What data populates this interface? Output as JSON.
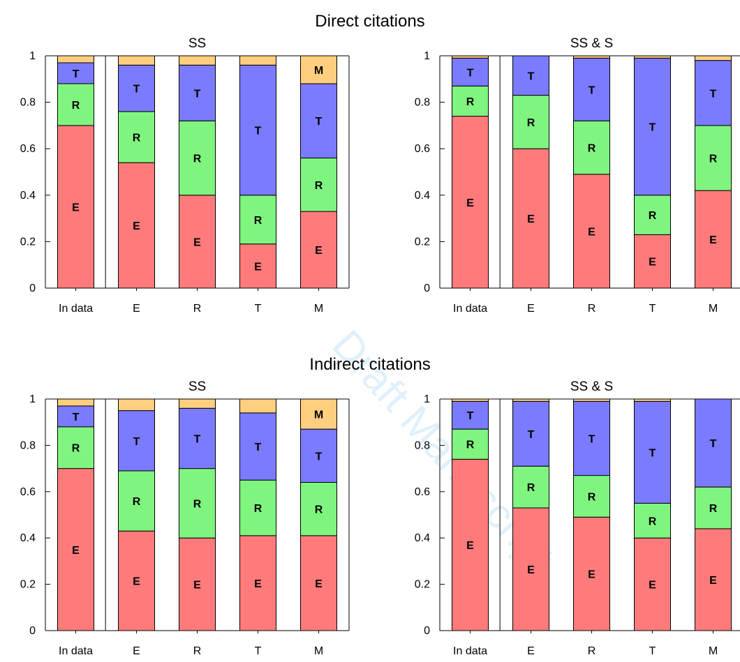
{
  "watermark": "Draft Manuscript",
  "sections": [
    {
      "title": "Direct citations"
    },
    {
      "title": "Indirect citations"
    }
  ],
  "colors": {
    "E": "#ff7b7b",
    "R": "#7ff57f",
    "T": "#7b7bff",
    "M": "#ffcf7f"
  },
  "chart_data": [
    {
      "type": "bar",
      "stacked": true,
      "section": "Direct citations",
      "title": "SS",
      "categories": [
        "In data",
        "E",
        "R",
        "T",
        "M"
      ],
      "ylim": [
        0,
        1
      ],
      "yticks": [
        "0",
        "0.2",
        "0.4",
        "0.6",
        "0.8",
        "1"
      ],
      "series": [
        {
          "name": "E",
          "values": [
            0.7,
            0.54,
            0.4,
            0.19,
            0.33
          ]
        },
        {
          "name": "R",
          "values": [
            0.18,
            0.22,
            0.32,
            0.21,
            0.23
          ]
        },
        {
          "name": "T",
          "values": [
            0.09,
            0.2,
            0.24,
            0.56,
            0.32
          ]
        },
        {
          "name": "M",
          "values": [
            0.03,
            0.04,
            0.04,
            0.04,
            0.12
          ]
        }
      ],
      "segment_labels": [
        [
          "E",
          "R",
          "T",
          ""
        ],
        [
          "E",
          "R",
          "T",
          ""
        ],
        [
          "E",
          "R",
          "T",
          ""
        ],
        [
          "E",
          "R",
          "T",
          ""
        ],
        [
          "E",
          "R",
          "T",
          "M"
        ]
      ]
    },
    {
      "type": "bar",
      "stacked": true,
      "section": "Direct citations",
      "title": "SS & S",
      "categories": [
        "In data",
        "E",
        "R",
        "T",
        "M"
      ],
      "ylim": [
        0,
        1
      ],
      "yticks": [
        "0",
        "0.2",
        "0.4",
        "0.6",
        "0.8",
        "1"
      ],
      "series": [
        {
          "name": "E",
          "values": [
            0.74,
            0.6,
            0.49,
            0.23,
            0.42
          ]
        },
        {
          "name": "R",
          "values": [
            0.13,
            0.23,
            0.23,
            0.17,
            0.28
          ]
        },
        {
          "name": "T",
          "values": [
            0.12,
            0.17,
            0.27,
            0.59,
            0.28
          ]
        },
        {
          "name": "M",
          "values": [
            0.01,
            0.0,
            0.01,
            0.01,
            0.02
          ]
        }
      ],
      "segment_labels": [
        [
          "E",
          "R",
          "T",
          ""
        ],
        [
          "E",
          "R",
          "T",
          ""
        ],
        [
          "E",
          "R",
          "T",
          ""
        ],
        [
          "E",
          "R",
          "T",
          ""
        ],
        [
          "E",
          "R",
          "T",
          ""
        ]
      ]
    },
    {
      "type": "bar",
      "stacked": true,
      "section": "Indirect citations",
      "title": "SS",
      "categories": [
        "In data",
        "E",
        "R",
        "T",
        "M"
      ],
      "ylim": [
        0,
        1
      ],
      "yticks": [
        "0",
        "0.2",
        "0.4",
        "0.6",
        "0.8",
        "1"
      ],
      "series": [
        {
          "name": "E",
          "values": [
            0.7,
            0.43,
            0.4,
            0.41,
            0.41
          ]
        },
        {
          "name": "R",
          "values": [
            0.18,
            0.26,
            0.3,
            0.24,
            0.23
          ]
        },
        {
          "name": "T",
          "values": [
            0.09,
            0.26,
            0.26,
            0.29,
            0.23
          ]
        },
        {
          "name": "M",
          "values": [
            0.03,
            0.05,
            0.04,
            0.06,
            0.13
          ]
        }
      ],
      "segment_labels": [
        [
          "E",
          "R",
          "T",
          ""
        ],
        [
          "E",
          "R",
          "T",
          ""
        ],
        [
          "E",
          "R",
          "T",
          ""
        ],
        [
          "E",
          "R",
          "T",
          ""
        ],
        [
          "E",
          "R",
          "T",
          "M"
        ]
      ]
    },
    {
      "type": "bar",
      "stacked": true,
      "section": "Indirect citations",
      "title": "SS & S",
      "categories": [
        "In data",
        "E",
        "R",
        "T",
        "M"
      ],
      "ylim": [
        0,
        1
      ],
      "yticks": [
        "0",
        "0.2",
        "0.4",
        "0.6",
        "0.8",
        "1"
      ],
      "series": [
        {
          "name": "E",
          "values": [
            0.74,
            0.53,
            0.49,
            0.4,
            0.44
          ]
        },
        {
          "name": "R",
          "values": [
            0.13,
            0.18,
            0.18,
            0.15,
            0.18
          ]
        },
        {
          "name": "T",
          "values": [
            0.12,
            0.28,
            0.32,
            0.44,
            0.38
          ]
        },
        {
          "name": "M",
          "values": [
            0.01,
            0.01,
            0.01,
            0.01,
            0.0
          ]
        }
      ],
      "segment_labels": [
        [
          "E",
          "R",
          "T",
          ""
        ],
        [
          "E",
          "R",
          "T",
          ""
        ],
        [
          "E",
          "R",
          "T",
          ""
        ],
        [
          "E",
          "R",
          "T",
          ""
        ],
        [
          "E",
          "R",
          "T",
          ""
        ]
      ]
    }
  ]
}
